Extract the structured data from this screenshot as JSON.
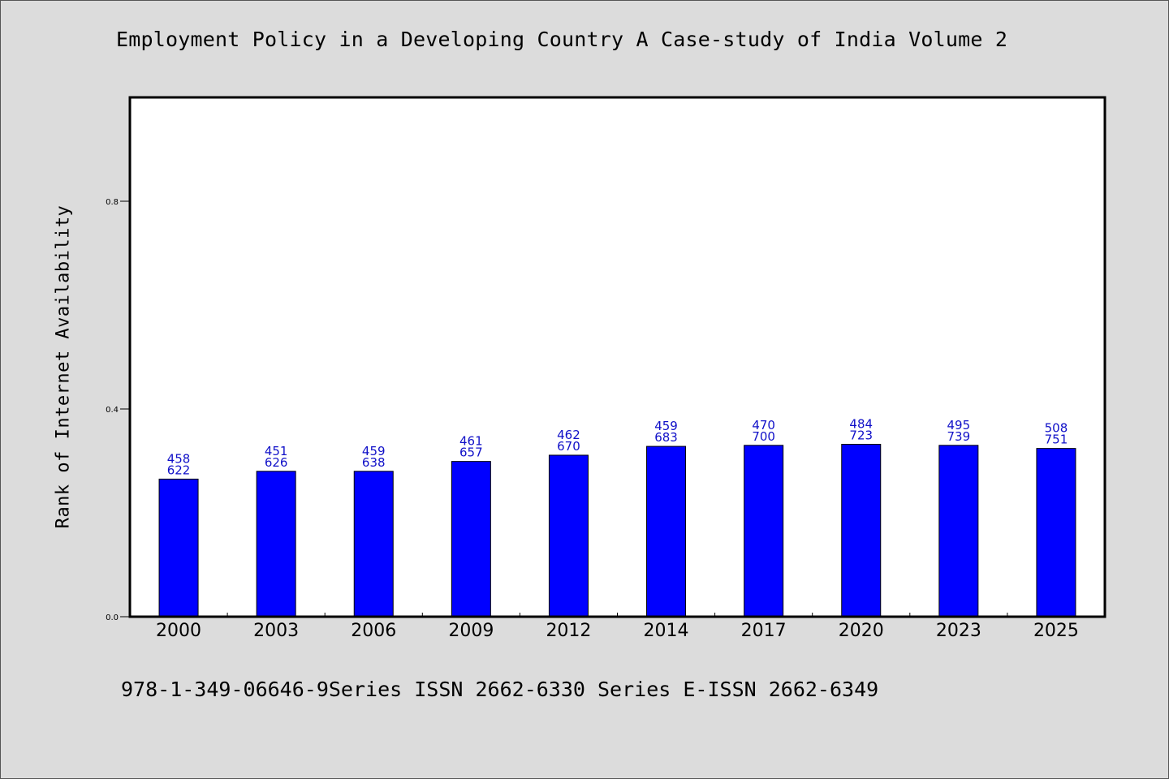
{
  "header": {
    "title": "Employment Policy in a Developing Country A Case-study of India Volume 2"
  },
  "footer": {
    "text": "978-1-349-06646-9Series ISSN 2662-6330 Series E-ISSN 2662-6349"
  },
  "chart_data": {
    "type": "bar",
    "title": "Employment Policy in a Developing Country A Case-study of India Volume 2",
    "xlabel": "",
    "ylabel": "Rank of Internet Availability",
    "ylim": [
      0,
      1.0
    ],
    "yticks": [
      0.0,
      0.4,
      0.8
    ],
    "ytick_labels": [
      "0.0",
      "0.4",
      "0.8"
    ],
    "grid": false,
    "bar_color": "#0000ff",
    "label_color": "#1010c8",
    "categories": [
      "2000",
      "2003",
      "2006",
      "2009",
      "2012",
      "2014",
      "2017",
      "2020",
      "2023",
      "2025"
    ],
    "values": [
      0.265,
      0.28,
      0.28,
      0.299,
      0.311,
      0.328,
      0.33,
      0.332,
      0.33,
      0.324
    ],
    "labels_top": [
      "458",
      "451",
      "459",
      "461",
      "462",
      "459",
      "470",
      "484",
      "495",
      "508"
    ],
    "labels_bottom": [
      "622",
      "626",
      "638",
      "657",
      "670",
      "683",
      "700",
      "723",
      "739",
      "751"
    ]
  }
}
